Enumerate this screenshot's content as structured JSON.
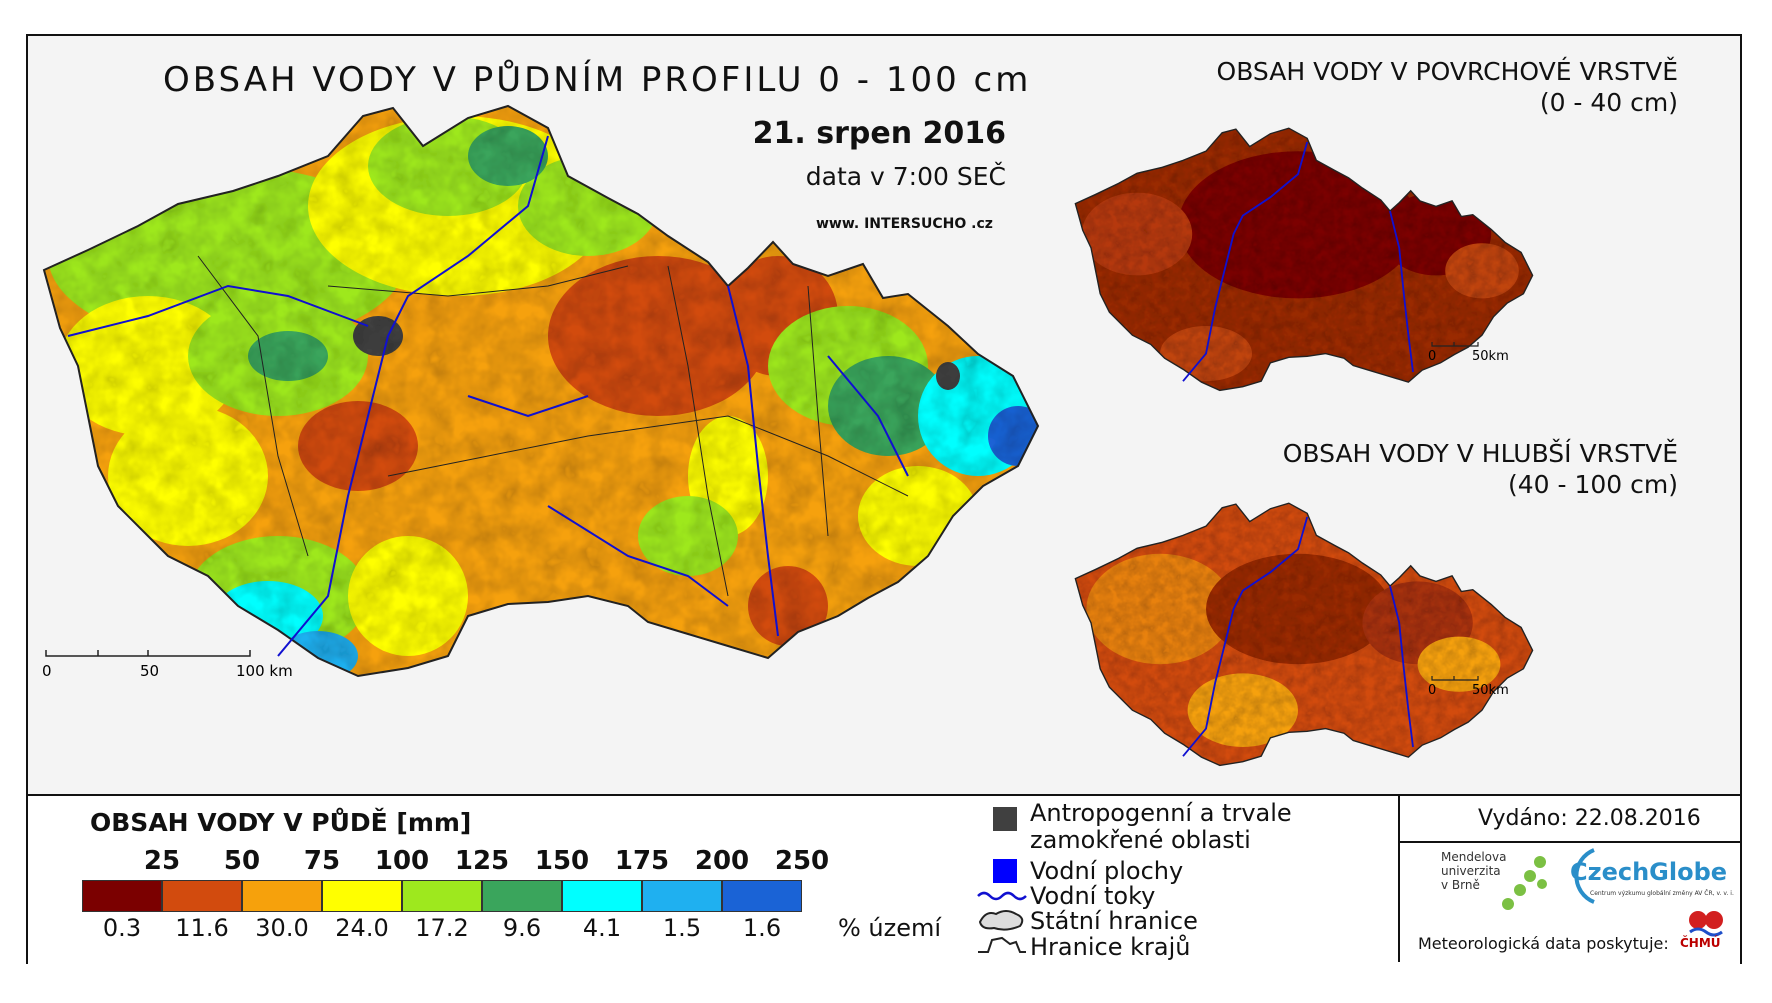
{
  "main_title": "OBSAH VODY V PŮDNÍM PROFILU 0 - 100 cm",
  "date": "21. srpen 2016",
  "time": "data v 7:00 SEČ",
  "website": "www. INTERSUCHO .cz",
  "surface_map": {
    "title_line1": "OBSAH VODY V POVRCHOVÉ VRSTVĚ",
    "title_line2": "(0 - 40 cm)",
    "scale": [
      "0",
      "50km"
    ]
  },
  "deep_map": {
    "title_line1": "OBSAH VODY V HLUBŠÍ VRSTVĚ",
    "title_line2": "(40 - 100 cm)",
    "scale": [
      "0",
      "50km"
    ]
  },
  "main_scale": [
    "0",
    "50",
    "100 km"
  ],
  "legend": {
    "title": "OBSAH VODY V PŮDĚ [mm]",
    "thresholds": [
      "25",
      "50",
      "75",
      "100",
      "125",
      "150",
      "175",
      "200",
      "250"
    ],
    "colors": [
      "#7b0000",
      "#d24b0e",
      "#f6a10c",
      "#ffff00",
      "#9ee81e",
      "#3aa55c",
      "#00ffff",
      "#1fb0f0",
      "#1a63d6"
    ],
    "percentages": [
      "0.3",
      "11.6",
      "30.0",
      "24.0",
      "17.2",
      "9.6",
      "4.1",
      "1.5",
      "1.6"
    ],
    "percent_label": "% území"
  },
  "key": {
    "anthropogenic_line1": "Antropogenní a trvale",
    "anthropogenic_line2": "zamokřené oblasti",
    "water_bodies": "Vodní plochy",
    "rivers": "Vodní toky",
    "state_border": "Státní hranice",
    "region_border": "Hranice krajů",
    "anthropogenic_color": "#404040",
    "water_color": "#0000ff"
  },
  "issued": "Vydáno: 22.08.2016",
  "partners": {
    "mendel_line1": "Mendelova",
    "mendel_line2": "univerzita",
    "mendel_line3": "v Brně",
    "czechglobe": "CzechGlobe",
    "czechglobe_sub": "Centrum výzkumu globální změny AV ČR, v. v. i.",
    "meteo": "Meteorologická data poskytuje:",
    "chmu": "ČHMÚ"
  }
}
